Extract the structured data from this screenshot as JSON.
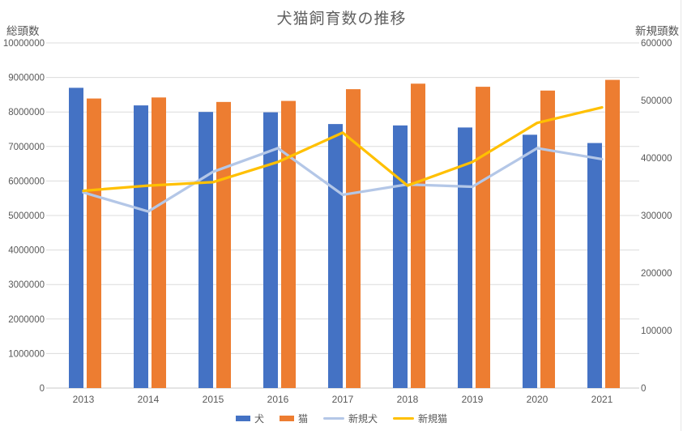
{
  "title": "犬猫飼育数の推移",
  "chart_data": {
    "type": "bar+line",
    "categories": [
      "2013",
      "2014",
      "2015",
      "2016",
      "2017",
      "2018",
      "2019",
      "2020",
      "2021"
    ],
    "series": [
      {
        "name": "犬",
        "type": "bar",
        "axis": "left",
        "color": "#4472C4",
        "values": [
          8700000,
          8190000,
          8000000,
          7990000,
          7650000,
          7610000,
          7550000,
          7340000,
          7100000
        ]
      },
      {
        "name": "猫",
        "type": "bar",
        "axis": "left",
        "color": "#ED7D31",
        "values": [
          8390000,
          8420000,
          8290000,
          8320000,
          8660000,
          8820000,
          8730000,
          8620000,
          8930000
        ]
      },
      {
        "name": "新規犬",
        "type": "line",
        "axis": "right",
        "color": "#B4C7E7",
        "values": [
          340000,
          307000,
          376000,
          417000,
          336000,
          354000,
          350000,
          417000,
          398000
        ]
      },
      {
        "name": "新規猫",
        "type": "line",
        "axis": "right",
        "color": "#FFC000",
        "values": [
          343000,
          352000,
          358000,
          393000,
          444000,
          352000,
          393000,
          461000,
          488000
        ]
      }
    ],
    "left_axis": {
      "title": "総頭数",
      "min": 0,
      "max": 10000000,
      "step": 1000000,
      "tick_labels": [
        "0",
        "1000000",
        "2000000",
        "3000000",
        "4000000",
        "5000000",
        "6000000",
        "7000000",
        "8000000",
        "9000000",
        "10000000"
      ]
    },
    "right_axis": {
      "title": "新規頭数",
      "min": 0,
      "max": 600000,
      "step": 100000,
      "tick_labels": [
        "0",
        "100000",
        "200000",
        "300000",
        "400000",
        "500000",
        "600000"
      ]
    },
    "grid": true,
    "legend_position": "bottom"
  },
  "colors": {
    "grid": "#dcdcdc",
    "axis_line": "#c9c9c9",
    "text": "#595959",
    "dog_bar": "#4472C4",
    "cat_bar": "#ED7D31",
    "new_dog_line": "#B4C7E7",
    "new_cat_line": "#FFC000"
  }
}
